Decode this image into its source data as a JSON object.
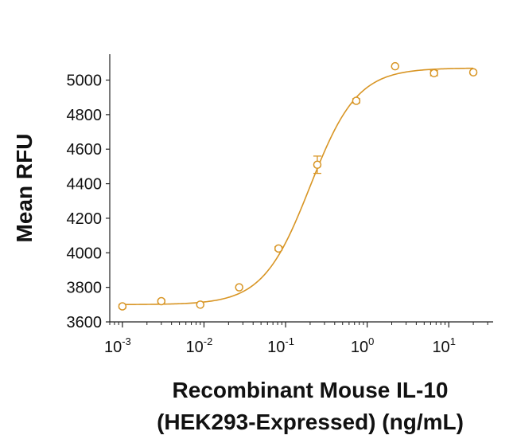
{
  "chart_data": {
    "type": "scatter",
    "title": "",
    "xlabel_line1": "Recombinant Mouse IL-10",
    "xlabel_line2": "(HEK293-Expressed) (ng/mL)",
    "ylabel": "Mean RFU",
    "xscale": "log",
    "xlim": [
      0.0007,
      35
    ],
    "ylim": [
      3600,
      5150
    ],
    "y_ticks": [
      3600,
      3800,
      4000,
      4200,
      4400,
      4600,
      4800,
      5000
    ],
    "x_ticks": [
      {
        "base": "10",
        "exp": "-3",
        "value": 0.001
      },
      {
        "base": "10",
        "exp": "-2",
        "value": 0.01
      },
      {
        "base": "10",
        "exp": "-1",
        "value": 0.1
      },
      {
        "base": "10",
        "exp": "0",
        "value": 1
      },
      {
        "base": "10",
        "exp": "1",
        "value": 10
      }
    ],
    "color": "#D89524",
    "series": [
      {
        "name": "Mean RFU",
        "x": [
          0.001,
          0.003,
          0.009,
          0.027,
          0.082,
          0.245,
          0.735,
          2.2,
          6.6,
          20
        ],
        "y": [
          3690,
          3720,
          3700,
          3800,
          4025,
          4510,
          4880,
          5080,
          5040,
          5045
        ],
        "err": [
          10,
          8,
          0,
          0,
          10,
          50,
          12,
          0,
          15,
          0
        ]
      }
    ],
    "fit_curve": {
      "model": "4PL",
      "bottom": 3700,
      "top": 5070,
      "ec50": 0.2,
      "hill": 1.5
    }
  }
}
